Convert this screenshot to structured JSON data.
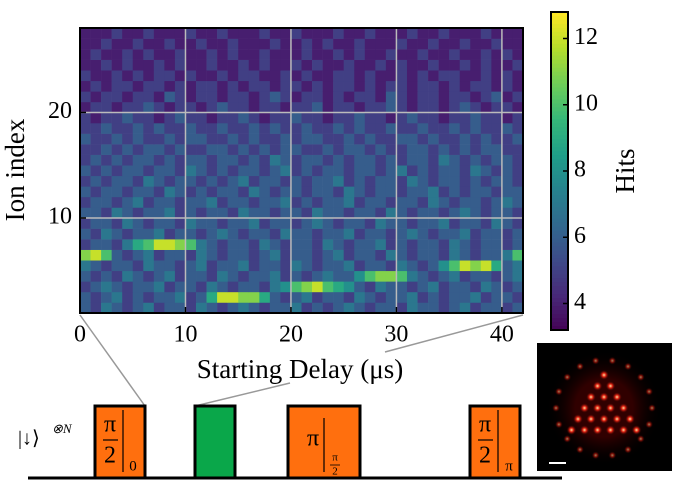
{
  "chart_data": {
    "type": "heatmap",
    "x_label": "Starting Delay (μs)",
    "y_label": "Ion index",
    "colorbar_label": "Hits",
    "xlim": [
      0,
      42
    ],
    "ylim": [
      1,
      28
    ],
    "xticks": [
      0,
      10,
      20,
      30,
      40
    ],
    "yticks": [
      10,
      20
    ],
    "grid": true,
    "colormap": "viridis",
    "clim": [
      3.2,
      12.8
    ],
    "cticks": [
      4,
      6,
      8,
      10,
      12
    ],
    "z": [
      [
        6,
        5,
        7,
        6,
        5,
        6,
        7,
        5,
        6,
        6,
        5,
        7,
        6,
        5,
        6,
        7,
        6,
        5,
        6,
        6,
        7,
        5,
        6,
        5,
        6,
        7,
        6,
        5,
        6,
        6,
        5,
        7,
        6,
        6,
        5,
        6,
        7,
        5,
        6,
        6,
        5,
        6
      ],
      [
        6,
        5,
        6,
        7,
        5,
        6,
        5,
        6,
        6,
        7,
        5,
        6,
        9,
        12,
        12,
        11,
        11,
        9,
        6,
        5,
        6,
        7,
        5,
        6,
        6,
        5,
        7,
        6,
        5,
        6,
        6,
        7,
        5,
        6,
        5,
        6,
        6,
        7,
        5,
        6,
        6,
        5
      ],
      [
        5,
        6,
        7,
        6,
        5,
        6,
        6,
        7,
        5,
        6,
        6,
        5,
        7,
        6,
        5,
        6,
        6,
        5,
        7,
        8,
        10,
        11,
        12,
        10,
        9,
        8,
        6,
        5,
        7,
        6,
        6,
        5,
        6,
        7,
        5,
        6,
        6,
        5,
        7,
        6,
        5,
        6
      ],
      [
        6,
        5,
        6,
        5,
        7,
        6,
        5,
        6,
        7,
        5,
        6,
        6,
        5,
        7,
        6,
        5,
        6,
        6,
        7,
        5,
        6,
        5,
        6,
        7,
        6,
        6,
        8,
        10,
        11,
        11,
        10,
        7,
        6,
        5,
        6,
        7,
        5,
        6,
        6,
        5,
        6,
        7
      ],
      [
        7,
        6,
        5,
        6,
        6,
        5,
        7,
        6,
        6,
        5,
        6,
        7,
        5,
        6,
        6,
        7,
        5,
        6,
        6,
        5,
        7,
        6,
        5,
        6,
        6,
        7,
        5,
        6,
        6,
        5,
        7,
        6,
        5,
        6,
        8,
        10,
        12,
        11,
        12,
        9,
        6,
        7
      ],
      [
        11,
        12,
        10,
        6,
        5,
        6,
        7,
        5,
        6,
        6,
        5,
        7,
        6,
        5,
        6,
        6,
        5,
        6,
        7,
        5,
        6,
        6,
        5,
        6,
        7,
        5,
        6,
        6,
        5,
        7,
        6,
        5,
        6,
        6,
        5,
        7,
        6,
        5,
        6,
        6,
        7,
        10
      ],
      [
        5,
        6,
        6,
        5,
        7,
        9,
        10,
        12,
        12,
        11,
        10,
        7,
        6,
        5,
        6,
        6,
        5,
        7,
        6,
        5,
        6,
        6,
        5,
        7,
        6,
        5,
        6,
        6,
        7,
        5,
        6,
        5,
        6,
        6,
        5,
        7,
        6,
        5,
        6,
        6,
        5,
        6
      ],
      [
        6,
        5,
        7,
        6,
        5,
        6,
        6,
        7,
        5,
        6,
        6,
        5,
        6,
        7,
        6,
        5,
        6,
        6,
        5,
        7,
        6,
        6,
        5,
        6,
        6,
        7,
        5,
        6,
        6,
        5,
        6,
        7,
        6,
        5,
        6,
        6,
        7,
        5,
        6,
        6,
        5,
        6
      ],
      [
        5,
        6,
        6,
        5,
        7,
        6,
        5,
        6,
        6,
        5,
        7,
        6,
        6,
        5,
        6,
        6,
        7,
        5,
        6,
        6,
        5,
        6,
        7,
        6,
        5,
        6,
        6,
        5,
        7,
        6,
        6,
        5,
        6,
        6,
        7,
        5,
        6,
        6,
        5,
        7,
        6,
        5
      ],
      [
        6,
        6,
        5,
        7,
        6,
        5,
        6,
        6,
        7,
        5,
        6,
        5,
        6,
        6,
        5,
        7,
        6,
        6,
        5,
        6,
        6,
        5,
        7,
        6,
        6,
        5,
        6,
        6,
        5,
        7,
        6,
        5,
        6,
        6,
        5,
        6,
        7,
        6,
        5,
        6,
        6,
        5
      ],
      [
        5,
        6,
        6,
        5,
        6,
        7,
        5,
        6,
        6,
        5,
        6,
        6,
        7,
        5,
        6,
        6,
        5,
        6,
        6,
        7,
        5,
        6,
        5,
        6,
        6,
        7,
        5,
        6,
        6,
        5,
        6,
        6,
        5,
        7,
        6,
        5,
        6,
        6,
        5,
        6,
        7,
        6
      ],
      [
        6,
        5,
        6,
        6,
        5,
        6,
        6,
        5,
        7,
        6,
        5,
        6,
        5,
        6,
        6,
        5,
        7,
        6,
        5,
        6,
        6,
        5,
        6,
        6,
        5,
        7,
        6,
        5,
        6,
        6,
        5,
        6,
        6,
        7,
        5,
        6,
        5,
        6,
        6,
        5,
        6,
        6
      ],
      [
        5,
        6,
        5,
        6,
        6,
        5,
        7,
        6,
        5,
        6,
        6,
        5,
        6,
        5,
        6,
        7,
        5,
        6,
        6,
        5,
        6,
        5,
        6,
        6,
        7,
        5,
        6,
        5,
        6,
        6,
        5,
        7,
        6,
        5,
        6,
        6,
        5,
        6,
        5,
        6,
        6,
        5
      ],
      [
        6,
        5,
        6,
        5,
        6,
        6,
        5,
        6,
        6,
        5,
        7,
        6,
        5,
        6,
        5,
        6,
        6,
        5,
        6,
        7,
        5,
        6,
        5,
        6,
        6,
        5,
        6,
        6,
        5,
        6,
        7,
        5,
        6,
        5,
        6,
        6,
        5,
        7,
        6,
        5,
        6,
        5
      ],
      [
        5,
        6,
        5,
        6,
        5,
        6,
        6,
        5,
        6,
        5,
        6,
        6,
        5,
        6,
        6,
        5,
        6,
        5,
        7,
        6,
        5,
        6,
        6,
        5,
        6,
        5,
        6,
        6,
        5,
        6,
        5,
        6,
        6,
        5,
        7,
        6,
        5,
        6,
        5,
        6,
        6,
        5
      ],
      [
        5,
        5,
        6,
        5,
        6,
        5,
        6,
        6,
        5,
        6,
        5,
        5,
        6,
        6,
        5,
        6,
        5,
        6,
        5,
        6,
        6,
        5,
        5,
        6,
        5,
        6,
        6,
        5,
        6,
        5,
        5,
        6,
        6,
        5,
        6,
        5,
        6,
        5,
        6,
        6,
        5,
        5
      ],
      [
        6,
        5,
        5,
        6,
        5,
        6,
        5,
        5,
        6,
        5,
        6,
        6,
        5,
        5,
        6,
        5,
        6,
        5,
        5,
        6,
        5,
        6,
        6,
        5,
        5,
        6,
        5,
        6,
        5,
        5,
        6,
        6,
        5,
        6,
        5,
        5,
        6,
        5,
        6,
        5,
        5,
        6
      ],
      [
        5,
        5,
        6,
        5,
        5,
        6,
        5,
        6,
        5,
        5,
        6,
        5,
        5,
        6,
        5,
        5,
        6,
        5,
        6,
        5,
        5,
        6,
        5,
        5,
        6,
        5,
        6,
        5,
        5,
        6,
        5,
        5,
        6,
        5,
        5,
        6,
        5,
        6,
        5,
        5,
        6,
        5
      ],
      [
        5,
        4,
        5,
        5,
        6,
        5,
        5,
        4,
        5,
        6,
        5,
        5,
        4,
        5,
        5,
        6,
        5,
        4,
        5,
        5,
        6,
        5,
        5,
        4,
        5,
        5,
        6,
        5,
        5,
        4,
        5,
        6,
        5,
        5,
        4,
        5,
        5,
        6,
        5,
        5,
        4,
        5
      ],
      [
        4,
        5,
        5,
        4,
        5,
        5,
        6,
        5,
        4,
        5,
        5,
        4,
        5,
        6,
        5,
        5,
        4,
        5,
        5,
        4,
        5,
        5,
        6,
        4,
        5,
        5,
        4,
        5,
        5,
        6,
        5,
        4,
        5,
        5,
        4,
        5,
        6,
        5,
        4,
        5,
        5,
        4
      ],
      [
        5,
        4,
        5,
        5,
        4,
        5,
        5,
        4,
        6,
        5,
        4,
        5,
        5,
        4,
        5,
        5,
        4,
        5,
        6,
        5,
        4,
        5,
        5,
        4,
        5,
        4,
        5,
        5,
        4,
        6,
        5,
        4,
        5,
        5,
        4,
        5,
        5,
        4,
        5,
        6,
        4,
        5
      ],
      [
        4,
        5,
        4,
        5,
        5,
        4,
        5,
        5,
        4,
        5,
        4,
        5,
        5,
        4,
        5,
        4,
        5,
        5,
        4,
        5,
        5,
        4,
        5,
        4,
        5,
        5,
        4,
        5,
        4,
        5,
        5,
        4,
        5,
        5,
        4,
        5,
        4,
        5,
        5,
        4,
        5,
        4
      ],
      [
        5,
        4,
        4,
        5,
        4,
        5,
        4,
        5,
        5,
        4,
        5,
        4,
        4,
        5,
        4,
        5,
        5,
        4,
        4,
        5,
        4,
        5,
        4,
        4,
        5,
        5,
        4,
        5,
        4,
        4,
        5,
        4,
        5,
        4,
        5,
        5,
        4,
        4,
        5,
        4,
        5,
        4
      ],
      [
        4,
        4,
        5,
        4,
        5,
        4,
        4,
        5,
        4,
        5,
        4,
        4,
        5,
        4,
        4,
        5,
        4,
        5,
        4,
        4,
        5,
        4,
        5,
        4,
        4,
        5,
        4,
        4,
        5,
        4,
        5,
        4,
        4,
        5,
        4,
        4,
        5,
        4,
        5,
        4,
        4,
        5
      ],
      [
        4,
        5,
        4,
        4,
        5,
        4,
        5,
        4,
        4,
        5,
        4,
        4,
        5,
        4,
        5,
        4,
        4,
        5,
        4,
        4,
        4,
        5,
        4,
        4,
        5,
        4,
        5,
        4,
        4,
        5,
        4,
        4,
        5,
        4,
        4,
        5,
        4,
        4,
        5,
        4,
        5,
        4
      ],
      [
        4,
        4,
        5,
        4,
        4,
        5,
        4,
        4,
        5,
        4,
        4,
        5,
        4,
        4,
        5,
        4,
        4,
        4,
        5,
        4,
        4,
        5,
        4,
        5,
        4,
        4,
        5,
        4,
        4,
        4,
        5,
        4,
        4,
        5,
        4,
        4,
        5,
        4,
        4,
        5,
        4,
        4
      ],
      [
        4,
        4,
        4,
        5,
        4,
        4,
        5,
        4,
        4,
        4,
        5,
        4,
        4,
        5,
        4,
        4,
        4,
        5,
        4,
        4,
        5,
        4,
        4,
        4,
        5,
        4,
        4,
        5,
        4,
        4,
        4,
        5,
        4,
        4,
        5,
        4,
        4,
        4,
        5,
        4,
        4,
        4
      ]
    ]
  },
  "sequence": {
    "state": "|↓⟩",
    "state_power": "⊗N",
    "pulses": [
      {
        "top": "π",
        "bottom": "2",
        "phase": "0"
      },
      {
        "top": "π",
        "phase_top": "π",
        "phase_bottom": "2"
      },
      {
        "top": "π",
        "bottom": "2",
        "phase": "π"
      }
    ]
  }
}
